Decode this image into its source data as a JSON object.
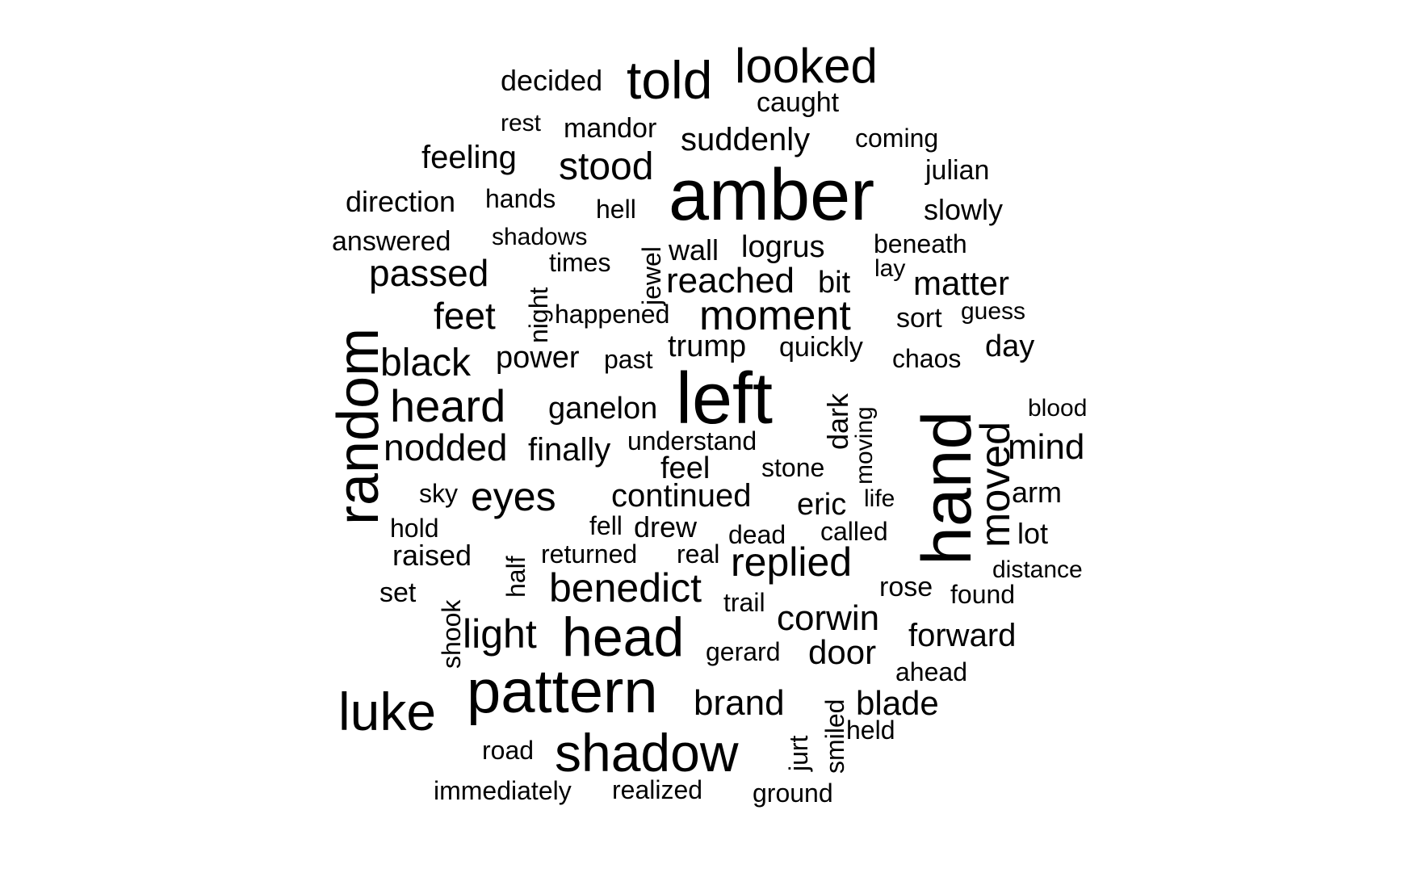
{
  "chart_data": {
    "type": "wordcloud",
    "words": [
      {
        "text": "amber",
        "size": 90,
        "rotated": false
      },
      {
        "text": "left",
        "size": 90,
        "rotated": false
      },
      {
        "text": "hand",
        "size": 86,
        "rotated": true
      },
      {
        "text": "random",
        "size": 72,
        "rotated": true
      },
      {
        "text": "pattern",
        "size": 76,
        "rotated": false
      },
      {
        "text": "shadow",
        "size": 66,
        "rotated": false
      },
      {
        "text": "head",
        "size": 68,
        "rotated": false
      },
      {
        "text": "luke",
        "size": 66,
        "rotated": false
      },
      {
        "text": "told",
        "size": 66,
        "rotated": false
      },
      {
        "text": "looked",
        "size": 60,
        "rotated": false
      },
      {
        "text": "heard",
        "size": 56,
        "rotated": false
      },
      {
        "text": "moment",
        "size": 52,
        "rotated": false
      },
      {
        "text": "moved",
        "size": 52,
        "rotated": true
      },
      {
        "text": "replied",
        "size": 50,
        "rotated": false
      },
      {
        "text": "benedict",
        "size": 50,
        "rotated": false
      },
      {
        "text": "eyes",
        "size": 50,
        "rotated": false
      },
      {
        "text": "stood",
        "size": 48,
        "rotated": false
      },
      {
        "text": "nodded",
        "size": 46,
        "rotated": false
      },
      {
        "text": "black",
        "size": 48,
        "rotated": false
      },
      {
        "text": "passed",
        "size": 46,
        "rotated": false
      },
      {
        "text": "feet",
        "size": 46,
        "rotated": false
      },
      {
        "text": "light",
        "size": 50,
        "rotated": false
      },
      {
        "text": "corwin",
        "size": 44,
        "rotated": false
      },
      {
        "text": "brand",
        "size": 44,
        "rotated": false
      },
      {
        "text": "mind",
        "size": 44,
        "rotated": false
      },
      {
        "text": "reached",
        "size": 44,
        "rotated": false
      },
      {
        "text": "matter",
        "size": 42,
        "rotated": false
      },
      {
        "text": "continued",
        "size": 40,
        "rotated": false
      },
      {
        "text": "suddenly",
        "size": 40,
        "rotated": false
      },
      {
        "text": "door",
        "size": 42,
        "rotated": false
      },
      {
        "text": "blade",
        "size": 42,
        "rotated": false
      },
      {
        "text": "forward",
        "size": 40,
        "rotated": false
      },
      {
        "text": "finally",
        "size": 40,
        "rotated": false
      },
      {
        "text": "feeling",
        "size": 40,
        "rotated": false
      },
      {
        "text": "power",
        "size": 38,
        "rotated": false
      },
      {
        "text": "ganelon",
        "size": 38,
        "rotated": false
      },
      {
        "text": "logrus",
        "size": 38,
        "rotated": false
      },
      {
        "text": "trump",
        "size": 38,
        "rotated": false
      },
      {
        "text": "eric",
        "size": 38,
        "rotated": false
      },
      {
        "text": "direction",
        "size": 36,
        "rotated": false
      },
      {
        "text": "decided",
        "size": 36,
        "rotated": false
      },
      {
        "text": "feel",
        "size": 38,
        "rotated": false
      },
      {
        "text": "day",
        "size": 38,
        "rotated": false
      },
      {
        "text": "bit",
        "size": 38,
        "rotated": false
      },
      {
        "text": "wall",
        "size": 36,
        "rotated": false
      },
      {
        "text": "dark",
        "size": 36,
        "rotated": true
      },
      {
        "text": "slowly",
        "size": 36,
        "rotated": false
      },
      {
        "text": "raised",
        "size": 36,
        "rotated": false
      },
      {
        "text": "sort",
        "size": 34,
        "rotated": false
      },
      {
        "text": "mandor",
        "size": 34,
        "rotated": false
      },
      {
        "text": "julian",
        "size": 34,
        "rotated": false
      },
      {
        "text": "drew",
        "size": 36,
        "rotated": false
      },
      {
        "text": "lot",
        "size": 36,
        "rotated": false
      },
      {
        "text": "arm",
        "size": 36,
        "rotated": false
      },
      {
        "text": "caught",
        "size": 34,
        "rotated": false
      },
      {
        "text": "answered",
        "size": 34,
        "rotated": false
      },
      {
        "text": "understand",
        "size": 32,
        "rotated": false
      },
      {
        "text": "quickly",
        "size": 34,
        "rotated": false
      },
      {
        "text": "happened",
        "size": 32,
        "rotated": false
      },
      {
        "text": "beneath",
        "size": 32,
        "rotated": false
      },
      {
        "text": "jewel",
        "size": 32,
        "rotated": true
      },
      {
        "text": "night",
        "size": 32,
        "rotated": true
      },
      {
        "text": "half",
        "size": 32,
        "rotated": true
      },
      {
        "text": "shook",
        "size": 32,
        "rotated": true
      },
      {
        "text": "smiled",
        "size": 32,
        "rotated": true
      },
      {
        "text": "jurt",
        "size": 32,
        "rotated": true
      },
      {
        "text": "moving",
        "size": 30,
        "rotated": true
      },
      {
        "text": "chaos",
        "size": 32,
        "rotated": false
      },
      {
        "text": "coming",
        "size": 32,
        "rotated": false
      },
      {
        "text": "hands",
        "size": 32,
        "rotated": false
      },
      {
        "text": "hell",
        "size": 32,
        "rotated": false
      },
      {
        "text": "times",
        "size": 32,
        "rotated": false
      },
      {
        "text": "shadows",
        "size": 30,
        "rotated": false
      },
      {
        "text": "past",
        "size": 32,
        "rotated": false
      },
      {
        "text": "stone",
        "size": 32,
        "rotated": false
      },
      {
        "text": "life",
        "size": 30,
        "rotated": false
      },
      {
        "text": "sky",
        "size": 32,
        "rotated": false
      },
      {
        "text": "hold",
        "size": 32,
        "rotated": false
      },
      {
        "text": "fell",
        "size": 32,
        "rotated": false
      },
      {
        "text": "dead",
        "size": 32,
        "rotated": false
      },
      {
        "text": "called",
        "size": 32,
        "rotated": false
      },
      {
        "text": "returned",
        "size": 32,
        "rotated": false
      },
      {
        "text": "real",
        "size": 32,
        "rotated": false
      },
      {
        "text": "rose",
        "size": 34,
        "rotated": false
      },
      {
        "text": "found",
        "size": 32,
        "rotated": false
      },
      {
        "text": "distance",
        "size": 30,
        "rotated": false
      },
      {
        "text": "set",
        "size": 34,
        "rotated": false
      },
      {
        "text": "trail",
        "size": 32,
        "rotated": false
      },
      {
        "text": "gerard",
        "size": 32,
        "rotated": false
      },
      {
        "text": "ahead",
        "size": 32,
        "rotated": false
      },
      {
        "text": "held",
        "size": 32,
        "rotated": false
      },
      {
        "text": "road",
        "size": 32,
        "rotated": false
      },
      {
        "text": "immediately",
        "size": 32,
        "rotated": false
      },
      {
        "text": "realized",
        "size": 32,
        "rotated": false
      },
      {
        "text": "ground",
        "size": 32,
        "rotated": false
      },
      {
        "text": "blood",
        "size": 30,
        "rotated": false
      },
      {
        "text": "guess",
        "size": 30,
        "rotated": false
      },
      {
        "text": "lay",
        "size": 30,
        "rotated": false
      },
      {
        "text": "rest",
        "size": 30,
        "rotated": false
      }
    ]
  }
}
